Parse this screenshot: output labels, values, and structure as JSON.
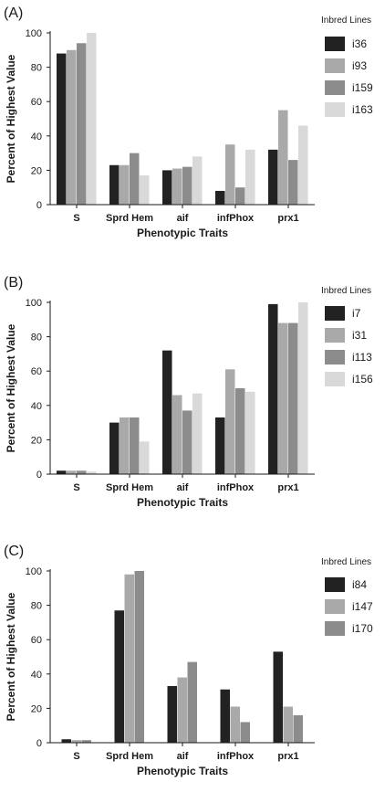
{
  "chart_data": [
    {
      "type": "bar",
      "panel_label": "(A)",
      "categories": [
        "S",
        "Sprd Hem",
        "aif",
        "infPhox",
        "prx1"
      ],
      "xlabel": "Phenotypic Traits",
      "ylabel": "Percent of Highest Value",
      "ylim": [
        0,
        100
      ],
      "yticks": [
        "0",
        "20",
        "40",
        "60",
        "80",
        "100"
      ],
      "grid": false,
      "legend_title": "Inbred Lines",
      "legend_position": "right",
      "series": [
        {
          "name": "i36",
          "color": "#222222",
          "values": [
            88,
            23,
            20,
            8,
            32
          ]
        },
        {
          "name": "i93",
          "color": "#a9a9a9",
          "values": [
            90,
            23,
            21,
            35,
            55
          ]
        },
        {
          "name": "i159",
          "color": "#8c8c8c",
          "values": [
            94,
            30,
            22,
            10,
            26
          ]
        },
        {
          "name": "i163",
          "color": "#d9d9d9",
          "values": [
            100,
            17,
            28,
            32,
            46
          ]
        }
      ]
    },
    {
      "type": "bar",
      "panel_label": "(B)",
      "categories": [
        "S",
        "Sprd Hem",
        "aif",
        "infPhox",
        "prx1"
      ],
      "xlabel": "Phenotypic Traits",
      "ylabel": "Percent of Highest Value",
      "ylim": [
        0,
        100
      ],
      "yticks": [
        "0",
        "20",
        "40",
        "60",
        "80",
        "100"
      ],
      "grid": false,
      "legend_title": "Inbred Lines",
      "legend_position": "right",
      "series": [
        {
          "name": "i7",
          "color": "#222222",
          "values": [
            2,
            30,
            72,
            33,
            99
          ]
        },
        {
          "name": "i31",
          "color": "#a9a9a9",
          "values": [
            2,
            33,
            46,
            61,
            88
          ]
        },
        {
          "name": "i113",
          "color": "#8c8c8c",
          "values": [
            2,
            33,
            37,
            50,
            88
          ]
        },
        {
          "name": "i156",
          "color": "#d9d9d9",
          "values": [
            1.5,
            19,
            47,
            48,
            100
          ]
        }
      ]
    },
    {
      "type": "bar",
      "panel_label": "(C)",
      "categories": [
        "S",
        "Sprd Hem",
        "aif",
        "infPhox",
        "prx1"
      ],
      "xlabel": "Phenotypic Traits",
      "ylabel": "Percent of Highest Value",
      "ylim": [
        0,
        100
      ],
      "yticks": [
        "0",
        "20",
        "40",
        "60",
        "80",
        "100"
      ],
      "grid": false,
      "legend_title": "Inbred Lines",
      "legend_position": "right",
      "series": [
        {
          "name": "i84",
          "color": "#222222",
          "values": [
            2,
            77,
            33,
            31,
            53
          ]
        },
        {
          "name": "i147",
          "color": "#a9a9a9",
          "values": [
            1.5,
            98,
            38,
            21,
            21
          ]
        },
        {
          "name": "i170",
          "color": "#8c8c8c",
          "values": [
            1.5,
            100,
            47,
            12,
            16
          ]
        }
      ]
    }
  ]
}
